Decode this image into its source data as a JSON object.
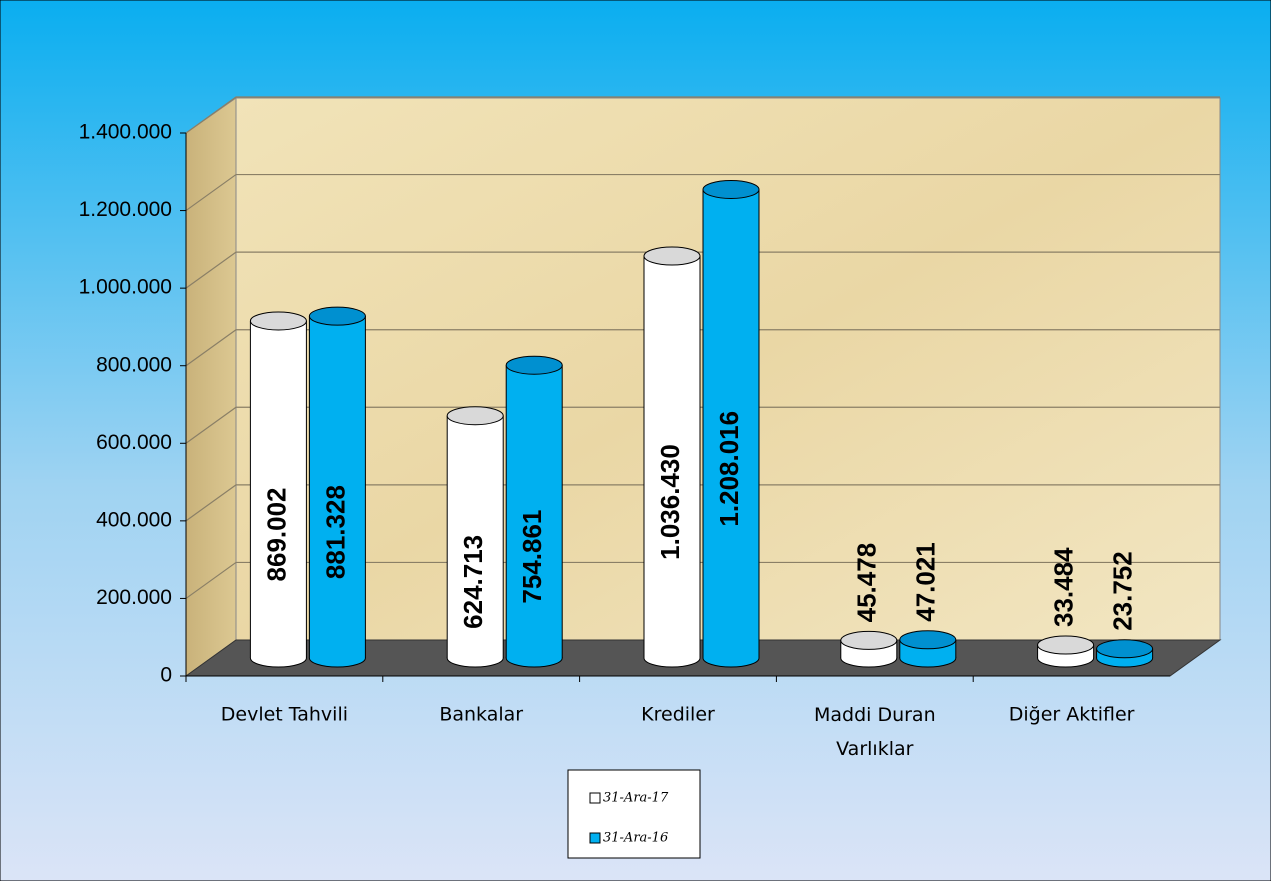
{
  "chart_data": {
    "type": "bar",
    "categories": [
      "Devlet Tahvili",
      "Bankalar",
      "Krediler",
      "Maddi Duran Varlıklar",
      "Diğer Aktifler"
    ],
    "series": [
      {
        "name": "31-Ara-17",
        "color": "#ffffff",
        "values": [
          869002,
          624713,
          1036430,
          45478,
          33484
        ],
        "value_labels": [
          "869.002",
          "624.713",
          "1.036.430",
          "45.478",
          "33.484"
        ]
      },
      {
        "name": "31-Ara-16",
        "color": "#00b0f0",
        "values": [
          881328,
          754861,
          1208016,
          47021,
          23752
        ],
        "value_labels": [
          "881.328",
          "754.861",
          "1.208.016",
          "47.021",
          "23.752"
        ]
      }
    ],
    "ylim": [
      0,
      1400000
    ],
    "yticks": [
      0,
      {
        "value": 200000,
        "label": "200.000"
      },
      {
        "value": 400000,
        "label": "400.000"
      },
      {
        "value": 600000,
        "label": "600.000"
      },
      {
        "value": 800000,
        "label": "800.000"
      },
      {
        "value": 1000000,
        "label": "1.000.000"
      },
      {
        "value": 1200000,
        "label": "1.200.000"
      },
      {
        "value": 1400000,
        "label": "1.400.000"
      }
    ],
    "grid": true,
    "legend": "bottom"
  }
}
